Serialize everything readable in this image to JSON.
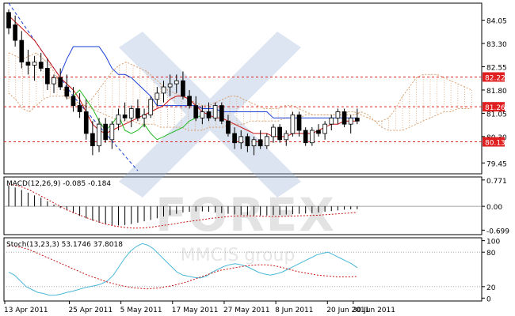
{
  "chart_data": [
    {
      "type": "candlestick",
      "panel": "price",
      "ylim": [
        79.1,
        84.6
      ],
      "y_ticks": [
        84.05,
        83.3,
        82.55,
        81.8,
        81.05,
        80.3,
        79.45
      ],
      "levels": [
        {
          "value": 82.22,
          "label": "82.22",
          "color": "#e02020"
        },
        {
          "value": 81.26,
          "label": "81.26",
          "color": "#e02020"
        },
        {
          "value": 80.13,
          "label": "80.13",
          "color": "#e02020"
        }
      ],
      "candles": [
        [
          84.3,
          84.4,
          83.6,
          83.8
        ],
        [
          83.9,
          84.2,
          83.2,
          83.4
        ],
        [
          83.4,
          83.7,
          82.5,
          82.7
        ],
        [
          82.7,
          83.1,
          82.3,
          82.6
        ],
        [
          82.6,
          82.9,
          82.1,
          82.7
        ],
        [
          82.7,
          83.0,
          82.4,
          82.5
        ],
        [
          82.5,
          82.8,
          81.8,
          82.0
        ],
        [
          82.0,
          82.3,
          81.7,
          82.2
        ],
        [
          82.2,
          82.5,
          81.8,
          81.9
        ],
        [
          81.9,
          82.3,
          81.5,
          81.6
        ],
        [
          81.6,
          81.9,
          81.1,
          81.3
        ],
        [
          81.3,
          81.7,
          80.9,
          81.1
        ],
        [
          81.1,
          81.5,
          80.2,
          80.4
        ],
        [
          80.4,
          80.8,
          79.7,
          80.0
        ],
        [
          80.0,
          80.9,
          79.8,
          80.7
        ],
        [
          80.7,
          80.9,
          80.1,
          80.2
        ],
        [
          80.2,
          80.8,
          79.9,
          80.7
        ],
        [
          80.7,
          81.2,
          80.5,
          81.0
        ],
        [
          81.0,
          81.4,
          80.8,
          80.9
        ],
        [
          80.9,
          81.3,
          80.6,
          81.2
        ],
        [
          81.2,
          81.5,
          80.8,
          80.9
        ],
        [
          80.9,
          81.2,
          80.6,
          81.0
        ],
        [
          81.0,
          81.6,
          80.9,
          81.5
        ],
        [
          81.5,
          81.9,
          81.3,
          81.7
        ],
        [
          81.7,
          82.1,
          81.4,
          81.9
        ],
        [
          81.9,
          82.3,
          81.6,
          82.0
        ],
        [
          82.0,
          82.3,
          81.7,
          82.1
        ],
        [
          82.1,
          82.4,
          81.5,
          81.6
        ],
        [
          81.6,
          81.8,
          81.2,
          81.3
        ],
        [
          81.3,
          81.6,
          80.8,
          80.9
        ],
        [
          80.9,
          81.3,
          80.7,
          81.1
        ],
        [
          81.1,
          81.4,
          80.8,
          80.9
        ],
        [
          80.9,
          81.4,
          80.8,
          81.3
        ],
        [
          81.3,
          81.4,
          80.7,
          80.8
        ],
        [
          80.8,
          81.0,
          80.3,
          80.4
        ],
        [
          80.4,
          80.6,
          79.9,
          80.1
        ],
        [
          80.1,
          80.5,
          79.9,
          80.3
        ],
        [
          80.3,
          80.4,
          79.8,
          80.0
        ],
        [
          80.0,
          80.3,
          79.7,
          80.2
        ],
        [
          80.2,
          80.5,
          79.9,
          80.0
        ],
        [
          80.0,
          80.4,
          79.9,
          80.3
        ],
        [
          80.3,
          80.7,
          80.1,
          80.6
        ],
        [
          80.6,
          80.7,
          80.1,
          80.2
        ],
        [
          80.2,
          80.5,
          80.0,
          80.4
        ],
        [
          80.4,
          81.1,
          80.3,
          81.0
        ],
        [
          81.0,
          81.1,
          80.3,
          80.5
        ],
        [
          80.5,
          80.6,
          80.0,
          80.1
        ],
        [
          80.1,
          80.6,
          80.0,
          80.5
        ],
        [
          80.5,
          80.7,
          80.3,
          80.4
        ],
        [
          80.4,
          80.8,
          80.2,
          80.7
        ],
        [
          80.7,
          81.0,
          80.5,
          80.9
        ],
        [
          80.9,
          81.2,
          80.7,
          81.1
        ],
        [
          81.1,
          81.2,
          80.6,
          80.7
        ],
        [
          80.7,
          81.0,
          80.4,
          80.9
        ],
        [
          80.9,
          81.2,
          80.7,
          80.8
        ]
      ],
      "cloud_a": [
        83.0,
        82.9,
        82.8,
        82.9,
        83.0,
        82.8,
        82.6,
        82.2,
        81.8,
        81.5,
        81.3,
        81.3,
        81.5,
        81.8,
        82.1,
        82.4,
        82.6,
        82.7,
        82.6,
        82.5,
        82.4,
        82.2,
        82.0,
        81.8,
        81.7,
        81.6,
        81.5,
        81.4,
        81.3,
        81.3,
        81.4,
        81.5,
        81.6,
        81.6,
        81.5,
        81.4,
        81.3,
        81.2,
        81.2,
        81.2,
        81.3,
        81.3,
        81.2,
        81.1,
        81.0,
        81.0,
        81.0,
        81.0,
        81.1,
        81.1,
        81.1,
        81.0,
        80.9,
        80.8,
        80.8,
        80.9,
        81.2,
        81.6,
        81.9,
        82.2,
        82.3,
        82.3,
        82.3,
        82.2,
        82.1,
        82.0,
        81.9,
        81.8
      ],
      "cloud_b": [
        81.7,
        81.5,
        81.2,
        81.1,
        81.3,
        81.5,
        81.6,
        81.6,
        81.6,
        81.5,
        81.4,
        81.3,
        81.2,
        81.1,
        81.0,
        80.9,
        80.8,
        80.8,
        80.8,
        80.7,
        80.7,
        80.7,
        80.6,
        80.6,
        80.6,
        80.6,
        80.5,
        80.5,
        80.5,
        80.6,
        80.6,
        80.6,
        80.7,
        80.7,
        80.7,
        80.8,
        80.8,
        80.8,
        80.8,
        80.8,
        80.9,
        80.9,
        80.9,
        81.0,
        81.0,
        81.0,
        81.0,
        81.0,
        81.0,
        81.0,
        81.0,
        81.1,
        81.0,
        80.8,
        80.6,
        80.5,
        80.5,
        80.5,
        80.6,
        80.7,
        80.8,
        80.9,
        81.0,
        81.1,
        81.1,
        81.2,
        81.2,
        81.2
      ],
      "red_line": [
        84.2,
        84.0,
        83.8,
        83.6,
        83.4,
        83.1,
        82.8,
        82.5,
        82.2,
        82.0,
        81.8,
        81.5,
        81.1,
        80.7,
        80.5,
        80.4,
        80.5,
        80.6,
        80.7,
        80.8,
        80.9,
        81.0,
        81.1,
        81.2,
        81.3,
        81.5,
        81.6,
        81.6,
        81.5,
        81.3,
        81.1,
        81.0,
        80.9,
        80.9,
        80.8,
        80.7,
        80.6,
        80.5,
        80.4,
        80.4,
        80.4,
        80.3,
        80.3,
        80.3,
        80.4,
        80.4,
        80.4,
        80.4,
        80.5,
        80.6,
        80.7,
        80.7,
        80.8,
        80.8,
        80.8
      ],
      "blue_line": [
        null,
        null,
        null,
        null,
        null,
        null,
        null,
        null,
        82.3,
        82.8,
        83.2,
        83.2,
        83.2,
        83.2,
        83.2,
        82.9,
        82.5,
        82.3,
        82.3,
        82.2,
        82.0,
        81.8,
        81.6,
        81.3,
        81.3,
        81.3,
        81.3,
        81.3,
        81.3,
        81.3,
        81.2,
        81.2,
        81.2,
        81.1,
        81.1,
        81.1,
        81.1,
        81.1,
        81.1,
        81.1,
        81.1,
        80.9,
        80.9,
        80.9,
        80.9,
        80.9,
        80.9,
        80.9,
        80.9,
        80.9,
        80.9,
        80.9,
        80.9,
        80.9,
        80.9
      ],
      "green_line": [
        null,
        null,
        null,
        null,
        null,
        null,
        null,
        null,
        null,
        null,
        81.6,
        81.8,
        81.5,
        81.2,
        80.8,
        80.5,
        80.7,
        81.0,
        80.5,
        80.4,
        80.5,
        80.7,
        80.4,
        80.2,
        80.3,
        80.4,
        80.5,
        80.6,
        80.8,
        80.9,
        81.0
      ],
      "dashed_diag": [
        [
          0,
          84.6
        ],
        [
          10,
          81.6
        ],
        [
          20,
          79.2
        ]
      ]
    },
    {
      "type": "histogram",
      "panel": "macd",
      "label": "MACD(12,26,9) -0.085 -0.184",
      "ylim": [
        -0.83,
        0.86
      ],
      "y_ticks": [
        {
          "value": 0.771,
          "label": "0.771"
        },
        {
          "value": 0.0,
          "label": "0.00"
        },
        {
          "value": -0.699,
          "label": "-0.699"
        }
      ],
      "values": [
        0.62,
        0.55,
        0.48,
        0.4,
        0.32,
        0.25,
        0.15,
        0.05,
        -0.05,
        -0.12,
        -0.2,
        -0.28,
        -0.35,
        -0.42,
        -0.48,
        -0.52,
        -0.55,
        -0.56,
        -0.55,
        -0.52,
        -0.48,
        -0.44,
        -0.4,
        -0.35,
        -0.3,
        -0.26,
        -0.22,
        -0.18,
        -0.16,
        -0.15,
        -0.15,
        -0.16,
        -0.18,
        -0.2,
        -0.22,
        -0.24,
        -0.25,
        -0.26,
        -0.27,
        -0.27,
        -0.27,
        -0.26,
        -0.25,
        -0.24,
        -0.23,
        -0.22,
        -0.21,
        -0.2,
        -0.18,
        -0.16,
        -0.14,
        -0.12,
        -0.1,
        -0.09,
        -0.085
      ],
      "signal": [
        0.65,
        0.6,
        0.5,
        0.35,
        0.2,
        0.05,
        -0.1,
        -0.22,
        -0.33,
        -0.43,
        -0.52,
        -0.58,
        -0.62,
        -0.64,
        -0.63,
        -0.6,
        -0.56,
        -0.52,
        -0.47,
        -0.43,
        -0.39,
        -0.35,
        -0.32,
        -0.29,
        -0.28,
        -0.28,
        -0.29,
        -0.3,
        -0.3,
        -0.29,
        -0.28,
        -0.27,
        -0.26,
        -0.24,
        -0.22,
        -0.2,
        -0.18
      ]
    },
    {
      "type": "line",
      "panel": "stochastic",
      "label": "Stoch(13,23,3) 53.1746 37.8018",
      "ylim": [
        -5,
        105
      ],
      "y_ticks": [
        {
          "value": 100,
          "label": "100"
        },
        {
          "value": 80,
          "label": "80"
        },
        {
          "value": 20,
          "label": "20"
        },
        {
          "value": 0,
          "label": "0"
        }
      ],
      "levels": [
        80,
        20
      ],
      "k_line": [
        45,
        40,
        30,
        20,
        15,
        10,
        8,
        5,
        5,
        7,
        10,
        12,
        15,
        18,
        20,
        22,
        25,
        30,
        40,
        55,
        70,
        82,
        90,
        95,
        92,
        85,
        75,
        65,
        55,
        45,
        40,
        38,
        36,
        35,
        38,
        45,
        50,
        55,
        58,
        60,
        58,
        55,
        50,
        45,
        42,
        40,
        42,
        45,
        50,
        55,
        60,
        65,
        70,
        75,
        78,
        80,
        75,
        70,
        65,
        60,
        53
      ],
      "d_line": [
        92,
        90,
        88,
        85,
        80,
        75,
        70,
        65,
        60,
        55,
        50,
        45,
        40,
        36,
        32,
        28,
        25,
        22,
        20,
        18,
        17,
        16,
        17,
        18,
        20,
        22,
        25,
        28,
        32,
        36,
        40,
        44,
        48,
        50,
        52,
        54,
        56,
        57,
        58,
        58,
        57,
        55,
        52,
        49,
        46,
        44,
        42,
        40,
        39,
        38,
        37,
        37,
        37,
        37.8
      ]
    }
  ],
  "x_axis": {
    "labels": [
      "13 Apr 2011",
      "25 Apr 2011",
      "5 May 2011",
      "17 May 2011",
      "27 May 2011",
      "8 Jun 2011",
      "20 Jun 2011",
      "30 Jun 2011"
    ]
  },
  "watermark": {
    "text": "FOREX",
    "sub": "MMCIS group"
  },
  "colors": {
    "bull": "#ffffff",
    "bear": "#000000",
    "blue": "#1a3fd6",
    "red": "#c81414",
    "green": "#22bb22",
    "cloud": "#d9a070",
    "level": "#e02020",
    "stoch_k": "#4ab8d8",
    "stoch_d": "#c81414",
    "watermark": "#9bb4d6"
  }
}
